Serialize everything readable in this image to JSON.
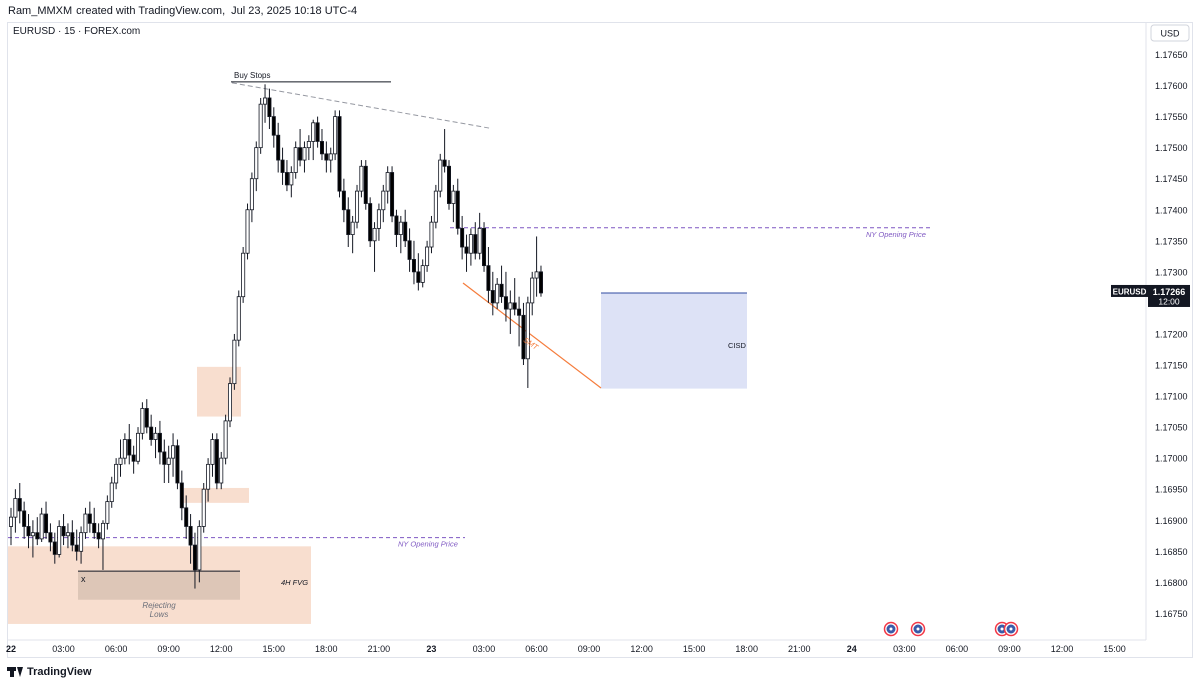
{
  "header": {
    "user": "Ram_MMXM",
    "created_with": "created with TradingView.com,",
    "date": "Jul 23, 2025 10:18 UTC-4"
  },
  "symbol_label": "EURUSD · 15 · FOREX.com",
  "footer": {
    "brand": "TradingView"
  },
  "colors": {
    "up_candle": "#ffffff",
    "down_candle": "#000000",
    "wick": "#131722",
    "fvg_zone": "#f6d3bf",
    "cisd_zone": "#d5dbf4",
    "opening_price_line": "#7e57c2",
    "smt_line": "#f57c3c",
    "buy_stops_line": "#131722"
  },
  "chart_data": {
    "type": "candlestick",
    "symbol": "EURUSD",
    "timeframe": "15",
    "currency": "USD",
    "y_range": [
      1.1671,
      1.1768
    ],
    "y_ticks": [
      "1.17650",
      "1.17600",
      "1.17550",
      "1.17500",
      "1.17450",
      "1.17400",
      "1.17350",
      "1.17300",
      "1.17250",
      "1.17200",
      "1.17150",
      "1.17100",
      "1.17050",
      "1.17000",
      "1.16950",
      "1.16900",
      "1.16850",
      "1.16800",
      "1.16750"
    ],
    "x_ticks": [
      "22",
      "03:00",
      "06:00",
      "09:00",
      "12:00",
      "15:00",
      "18:00",
      "21:00",
      "23",
      "03:00",
      "06:00",
      "09:00",
      "12:00",
      "15:00",
      "18:00",
      "21:00",
      "24",
      "03:00",
      "06:00",
      "09:00",
      "12:00",
      "15:00"
    ],
    "bold_x_ticks": [
      "22",
      "23",
      "24"
    ],
    "last_price": {
      "symbol": "EURUSD",
      "value": "1.17266",
      "countdown": "12:00"
    },
    "annotations": {
      "buy_stops": "Buy Stops",
      "ny_opening_price_1": "NY Opening Price",
      "ny_opening_price_2": "NY Opening Price",
      "smt": "SMT",
      "cisd": "CISD",
      "fvg_4h": "4H FVG",
      "rejecting_lows": "Rejecting\nLows",
      "x_marker": "x"
    },
    "levels": {
      "ny_opening_price_1": 1.16872,
      "ny_opening_price_2": 1.17371,
      "buy_stops": 1.17606,
      "cisd_top": 1.17266,
      "cisd_bottom": 1.17112,
      "fvg_top": 1.16858,
      "fvg_bottom": 1.16733,
      "rejecting_top": 1.16818,
      "rejecting_bottom": 1.16772,
      "smt_start": 1.17282,
      "smt_end": 1.17113,
      "upper_zone_top": 1.17147,
      "upper_zone_bottom": 1.17067,
      "small_zone_top": 1.16952,
      "small_zone_bottom": 1.16928
    },
    "candles": [
      [
        1.1689,
        1.1692,
        1.1686,
        1.16905
      ],
      [
        1.16905,
        1.1695,
        1.1688,
        1.16935
      ],
      [
        1.16935,
        1.1696,
        1.16895,
        1.16915
      ],
      [
        1.16915,
        1.1693,
        1.1687,
        1.1689
      ],
      [
        1.1689,
        1.1691,
        1.16855,
        1.16875
      ],
      [
        1.16875,
        1.169,
        1.1684,
        1.1688
      ],
      [
        1.1688,
        1.16905,
        1.1686,
        1.1687
      ],
      [
        1.1687,
        1.1692,
        1.16865,
        1.1691
      ],
      [
        1.1691,
        1.1693,
        1.1687,
        1.1688
      ],
      [
        1.1688,
        1.16895,
        1.1685,
        1.16865
      ],
      [
        1.16865,
        1.1688,
        1.1683,
        1.16845
      ],
      [
        1.16845,
        1.169,
        1.1684,
        1.1689
      ],
      [
        1.1689,
        1.1691,
        1.1686,
        1.16875
      ],
      [
        1.16875,
        1.16895,
        1.16855,
        1.1688
      ],
      [
        1.1688,
        1.169,
        1.1685,
        1.1686
      ],
      [
        1.1686,
        1.16885,
        1.16835,
        1.1685
      ],
      [
        1.1685,
        1.1689,
        1.1683,
        1.1688
      ],
      [
        1.1688,
        1.1692,
        1.1687,
        1.1691
      ],
      [
        1.1691,
        1.1693,
        1.1688,
        1.16895
      ],
      [
        1.16895,
        1.1692,
        1.1687,
        1.1688
      ],
      [
        1.1688,
        1.16895,
        1.16855,
        1.1687
      ],
      [
        1.1687,
        1.169,
        1.1682,
        1.16895
      ],
      [
        1.16895,
        1.1694,
        1.16885,
        1.1693
      ],
      [
        1.1693,
        1.1697,
        1.1692,
        1.1696
      ],
      [
        1.1696,
        1.17,
        1.1695,
        1.1699
      ],
      [
        1.1699,
        1.1703,
        1.1697,
        1.17
      ],
      [
        1.17,
        1.1704,
        1.1699,
        1.1703
      ],
      [
        1.1703,
        1.17055,
        1.1699,
        1.17005
      ],
      [
        1.17005,
        1.1702,
        1.16975,
        1.16995
      ],
      [
        1.16995,
        1.1705,
        1.1699,
        1.1704
      ],
      [
        1.1704,
        1.1709,
        1.1703,
        1.1708
      ],
      [
        1.1708,
        1.17095,
        1.1704,
        1.1705
      ],
      [
        1.1705,
        1.1707,
        1.1702,
        1.1703
      ],
      [
        1.1703,
        1.1705,
        1.17,
        1.1704
      ],
      [
        1.1704,
        1.1706,
        1.1699,
        1.1701
      ],
      [
        1.1701,
        1.1703,
        1.1696,
        1.1699
      ],
      [
        1.1699,
        1.1702,
        1.1696,
        1.17
      ],
      [
        1.17,
        1.1704,
        1.1697,
        1.1702
      ],
      [
        1.1702,
        1.1703,
        1.1695,
        1.1696
      ],
      [
        1.1696,
        1.1698,
        1.169,
        1.1692
      ],
      [
        1.1692,
        1.1694,
        1.1687,
        1.1689
      ],
      [
        1.1689,
        1.1691,
        1.1683,
        1.1686
      ],
      [
        1.1686,
        1.1688,
        1.1679,
        1.1682
      ],
      [
        1.1682,
        1.169,
        1.168,
        1.1689
      ],
      [
        1.1689,
        1.1696,
        1.1688,
        1.1695
      ],
      [
        1.1695,
        1.17,
        1.1693,
        1.1699
      ],
      [
        1.1699,
        1.1704,
        1.1697,
        1.1703
      ],
      [
        1.1703,
        1.1704,
        1.1695,
        1.1696
      ],
      [
        1.1696,
        1.1701,
        1.1695,
        1.17
      ],
      [
        1.17,
        1.1707,
        1.1699,
        1.1706
      ],
      [
        1.1706,
        1.1713,
        1.1705,
        1.1712
      ],
      [
        1.1712,
        1.172,
        1.1711,
        1.1719
      ],
      [
        1.1719,
        1.1727,
        1.1718,
        1.1726
      ],
      [
        1.1726,
        1.1734,
        1.1725,
        1.1733
      ],
      [
        1.1733,
        1.1741,
        1.1732,
        1.174
      ],
      [
        1.174,
        1.1746,
        1.1738,
        1.1745
      ],
      [
        1.1745,
        1.1751,
        1.1743,
        1.175
      ],
      [
        1.175,
        1.1758,
        1.1749,
        1.1757
      ],
      [
        1.1757,
        1.17602,
        1.1754,
        1.1758
      ],
      [
        1.1758,
        1.17595,
        1.1753,
        1.1755
      ],
      [
        1.1755,
        1.17565,
        1.175,
        1.1752
      ],
      [
        1.1752,
        1.1754,
        1.1746,
        1.1748
      ],
      [
        1.1748,
        1.175,
        1.1744,
        1.1746
      ],
      [
        1.1746,
        1.1748,
        1.1743,
        1.1744
      ],
      [
        1.1744,
        1.1747,
        1.1742,
        1.1746
      ],
      [
        1.1746,
        1.1751,
        1.1745,
        1.175
      ],
      [
        1.175,
        1.1753,
        1.1747,
        1.1748
      ],
      [
        1.1748,
        1.1751,
        1.1746,
        1.175
      ],
      [
        1.175,
        1.1752,
        1.1748,
        1.1751
      ],
      [
        1.1751,
        1.17545,
        1.1748,
        1.1754
      ],
      [
        1.1754,
        1.1755,
        1.175,
        1.1751
      ],
      [
        1.1751,
        1.1753,
        1.1748,
        1.1749
      ],
      [
        1.1749,
        1.1751,
        1.1746,
        1.1748
      ],
      [
        1.1748,
        1.175,
        1.1746,
        1.1749
      ],
      [
        1.1749,
        1.1756,
        1.1748,
        1.1755
      ],
      [
        1.1755,
        1.1756,
        1.1742,
        1.1743
      ],
      [
        1.1743,
        1.1745,
        1.1738,
        1.174
      ],
      [
        1.174,
        1.1742,
        1.1734,
        1.1736
      ],
      [
        1.1736,
        1.1739,
        1.1733,
        1.1738
      ],
      [
        1.1738,
        1.1744,
        1.1737,
        1.1743
      ],
      [
        1.1743,
        1.1748,
        1.1742,
        1.1747
      ],
      [
        1.1747,
        1.1748,
        1.174,
        1.1741
      ],
      [
        1.1741,
        1.1742,
        1.1734,
        1.1735
      ],
      [
        1.1735,
        1.1738,
        1.173,
        1.1737
      ],
      [
        1.1737,
        1.1741,
        1.1735,
        1.174
      ],
      [
        1.174,
        1.1744,
        1.1738,
        1.1743
      ],
      [
        1.1743,
        1.1747,
        1.1741,
        1.1746
      ],
      [
        1.1746,
        1.1747,
        1.1738,
        1.1739
      ],
      [
        1.1739,
        1.174,
        1.1734,
        1.1736
      ],
      [
        1.1736,
        1.1739,
        1.1733,
        1.1738
      ],
      [
        1.1738,
        1.174,
        1.1734,
        1.1735
      ],
      [
        1.1735,
        1.1737,
        1.173,
        1.1732
      ],
      [
        1.1732,
        1.1735,
        1.1728,
        1.173
      ],
      [
        1.173,
        1.1733,
        1.1727,
        1.17283
      ],
      [
        1.17283,
        1.1732,
        1.17275,
        1.1731
      ],
      [
        1.1731,
        1.1735,
        1.173,
        1.1734
      ],
      [
        1.1734,
        1.1739,
        1.1733,
        1.1738
      ],
      [
        1.1738,
        1.1744,
        1.1737,
        1.1743
      ],
      [
        1.1743,
        1.1749,
        1.1742,
        1.1748
      ],
      [
        1.1748,
        1.1753,
        1.1746,
        1.1747
      ],
      [
        1.1747,
        1.1748,
        1.174,
        1.1741
      ],
      [
        1.1741,
        1.1744,
        1.1738,
        1.1743
      ],
      [
        1.1743,
        1.1745,
        1.1736,
        1.1737
      ],
      [
        1.1737,
        1.1739,
        1.1732,
        1.1734
      ],
      [
        1.1734,
        1.1736,
        1.173,
        1.1733
      ],
      [
        1.1733,
        1.1737,
        1.1731,
        1.1736
      ],
      [
        1.1736,
        1.1738,
        1.1732,
        1.1733
      ],
      [
        1.1733,
        1.17395,
        1.1732,
        1.1737
      ],
      [
        1.1737,
        1.1738,
        1.173,
        1.1731
      ],
      [
        1.1731,
        1.1734,
        1.1725,
        1.1727
      ],
      [
        1.1727,
        1.173,
        1.1723,
        1.1725
      ],
      [
        1.1725,
        1.1729,
        1.1724,
        1.1728
      ],
      [
        1.1728,
        1.1731,
        1.1725,
        1.1726
      ],
      [
        1.1726,
        1.173,
        1.1722,
        1.1724
      ],
      [
        1.1724,
        1.1727,
        1.172,
        1.1725
      ],
      [
        1.1725,
        1.1729,
        1.1723,
        1.1724
      ],
      [
        1.1724,
        1.1726,
        1.1718,
        1.1723
      ],
      [
        1.1723,
        1.1725,
        1.1715,
        1.1716
      ],
      [
        1.1716,
        1.1726,
        1.17113,
        1.1725
      ],
      [
        1.1725,
        1.173,
        1.1723,
        1.1729
      ],
      [
        1.1729,
        1.17357,
        1.1726,
        1.173
      ],
      [
        1.173,
        1.1731,
        1.1726,
        1.17266
      ]
    ]
  }
}
